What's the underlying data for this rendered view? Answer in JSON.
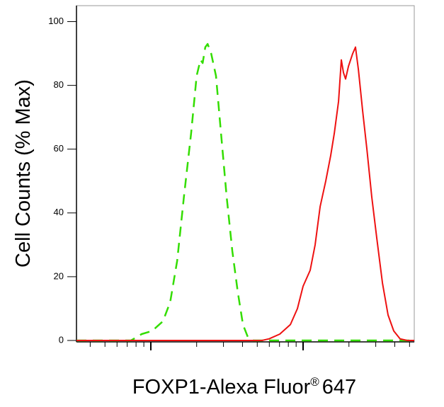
{
  "chart_data": {
    "type": "line",
    "x_label": [
      "FOXP1-Alexa Fluor",
      "®",
      "647"
    ],
    "y_label": "Cell Counts (% Max)",
    "log_x": true,
    "xlim": [
      325,
      53700
    ],
    "ylim": [
      0,
      105
    ],
    "yticks": [
      0,
      20,
      40,
      60,
      80,
      100
    ],
    "xticks_major": [
      1000,
      10000
    ],
    "xticks_minor": [
      400,
      500,
      600,
      700,
      800,
      900,
      2000,
      3000,
      4000,
      5000,
      6000,
      7000,
      8000,
      9000,
      20000,
      30000,
      40000,
      50000
    ],
    "series": [
      {
        "color": "#33dd00",
        "dashed": true,
        "x": [
          325,
          741,
          870,
          1020,
          1200,
          1340,
          1490,
          1650,
          1840,
          2000,
          2120,
          2190,
          2280,
          2360,
          2490,
          2680,
          2890,
          3150,
          3430,
          3730,
          4030,
          4340,
          4730,
          53700
        ],
        "values": [
          0,
          0,
          2,
          3,
          6,
          12,
          25,
          45,
          65,
          83,
          88,
          87,
          92,
          93,
          90,
          83,
          65,
          45,
          28,
          15,
          5,
          1,
          0,
          0
        ]
      },
      {
        "color": "#ee1111",
        "dashed": false,
        "x": [
          325,
          5370,
          5980,
          7030,
          8250,
          9180,
          10000,
          11130,
          12000,
          12940,
          14090,
          15180,
          16030,
          17100,
          17830,
          18410,
          19010,
          19860,
          21180,
          22090,
          23070,
          24600,
          26240,
          28260,
          30480,
          33200,
          36140,
          39370,
          43350,
          48300,
          53700
        ],
        "values": [
          0,
          0,
          0.5,
          2,
          5,
          10,
          17,
          22,
          30,
          42,
          50,
          58,
          65,
          75,
          88,
          84,
          82,
          86,
          90,
          92,
          85,
          72,
          60,
          45,
          32,
          18,
          8,
          3,
          0.5,
          0,
          0
        ]
      }
    ]
  }
}
